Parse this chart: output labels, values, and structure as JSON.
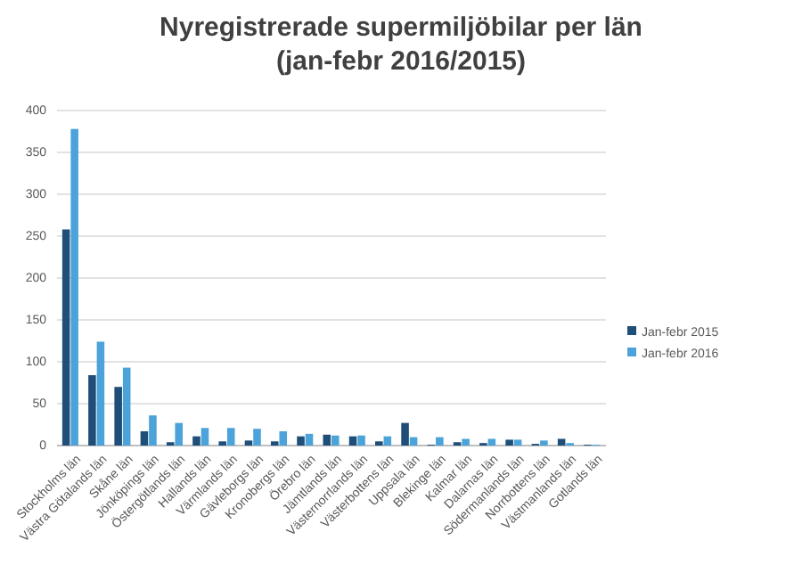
{
  "chart_data": {
    "type": "bar",
    "title": "Nyregistrerade supermiljöbilar per län\n(jan-febr 2016/2015)",
    "categories": [
      "Stockholms län",
      "Västra Götalands län",
      "Skåne län",
      "Jönköpings län",
      "Östergötlands län",
      "Hallands län",
      "Värmlands län",
      "Gävleborgs län",
      "Kronobergs län",
      "Örebro län",
      "Jämtlands län",
      "Västernorrlands län",
      "Västerbottens län",
      "Uppsala län",
      "Blekinge län",
      "Kalmar län",
      "Dalarnas län",
      "Södermanlands län",
      "Norrbottens län",
      "Västmanlands län",
      "Gotlands län"
    ],
    "series": [
      {
        "name": "Jan-febr 2015",
        "color": "#1f4e79",
        "values": [
          258,
          84,
          70,
          17,
          4,
          11,
          5,
          6,
          5,
          11,
          13,
          11,
          5,
          27,
          1,
          4,
          3,
          7,
          2,
          8,
          1
        ]
      },
      {
        "name": "Jan-febr 2016",
        "color": "#4ba3d9",
        "values": [
          378,
          124,
          93,
          36,
          27,
          21,
          21,
          20,
          17,
          14,
          12,
          12,
          11,
          10,
          10,
          8,
          8,
          7,
          6,
          3,
          1
        ]
      }
    ],
    "ylim": [
      0,
      400
    ],
    "yticks": [
      0,
      50,
      100,
      150,
      200,
      250,
      300,
      350,
      400
    ],
    "grid": "y",
    "legend": "right"
  }
}
